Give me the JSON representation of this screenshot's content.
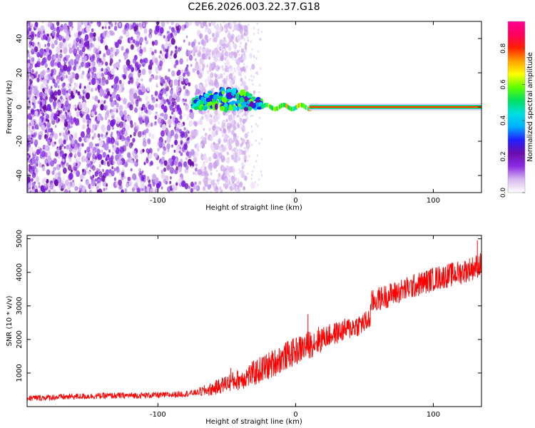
{
  "title": "C2E6.2026.003.22.37.G18",
  "chart_data": [
    {
      "type": "heatmap",
      "name": "spectrogram",
      "xlabel": "Height of straight line (km)",
      "ylabel": "Frequency (Hz)",
      "xlim": [
        -195,
        135
      ],
      "ylim": [
        -50,
        50
      ],
      "xticks": [
        -100,
        0,
        100
      ],
      "xtick_labels": [
        "-100",
        "0",
        "100"
      ],
      "yticks": [
        -40,
        -20,
        0,
        20,
        40
      ],
      "ytick_labels": [
        "-40",
        "-20",
        "0",
        "20",
        "40"
      ],
      "colorbar": {
        "label": "Normalized spectral amplitude",
        "range": [
          0,
          0.95
        ],
        "ticks": [
          0,
          0.2,
          0.4,
          0.6,
          0.8
        ],
        "tick_labels": [
          "0.0",
          "0.2",
          "0.4",
          "0.6",
          "0.8"
        ],
        "colors": [
          "#ffffff",
          "#d8b8f0",
          "#8a2be2",
          "#6a0dad",
          "#2020ff",
          "#00b0ff",
          "#00e0e0",
          "#00e060",
          "#60ff00",
          "#ffff00",
          "#ffa000",
          "#ff2000",
          "#ff0060",
          "#ff0090"
        ]
      },
      "regions": [
        {
          "x_range": [
            -195,
            -70
          ],
          "description": "broadband noise",
          "amplitude": 0.1
        },
        {
          "x_range": [
            -75,
            -25
          ],
          "description": "emerging signal near 0-10 Hz",
          "amplitude": 0.35
        },
        {
          "x_range": [
            -25,
            15
          ],
          "description": "signal line with small wiggles",
          "amplitude": 0.6
        },
        {
          "x_range": [
            15,
            135
          ],
          "description": "strong carrier line at 0 Hz",
          "amplitude": 0.9
        }
      ]
    },
    {
      "type": "line",
      "name": "snr",
      "xlabel": "Height of straight line (km)",
      "ylabel": "SNR (10 * v/v)",
      "xlim": [
        -195,
        135
      ],
      "ylim": [
        0,
        5100
      ],
      "xticks": [
        -100,
        0,
        100
      ],
      "xtick_labels": [
        "-100",
        "0",
        "100"
      ],
      "yticks": [
        1000,
        2000,
        3000,
        4000,
        5000
      ],
      "ytick_labels": [
        "1000",
        "2000",
        "3000",
        "4000",
        "5000"
      ],
      "color": "#ff0000",
      "series": [
        {
          "name": "SNR",
          "x": [
            -195,
            -180,
            -160,
            -140,
            -120,
            -100,
            -90,
            -80,
            -70,
            -60,
            -50,
            -40,
            -30,
            -20,
            -10,
            0,
            10,
            20,
            30,
            40,
            50,
            54,
            55,
            60,
            70,
            80,
            90,
            100,
            110,
            120,
            130,
            135
          ],
          "y": [
            250,
            270,
            300,
            320,
            330,
            340,
            350,
            380,
            430,
            530,
            700,
            820,
            1000,
            1200,
            1450,
            1650,
            1850,
            2050,
            2200,
            2350,
            2500,
            2600,
            3100,
            3200,
            3350,
            3500,
            3650,
            3800,
            3900,
            4000,
            4150,
            4250
          ]
        }
      ],
      "spikes": [
        {
          "x": 132,
          "y": 4950
        },
        {
          "x": 9,
          "y": 2750
        },
        {
          "x": -47,
          "y": 1150
        }
      ]
    }
  ]
}
